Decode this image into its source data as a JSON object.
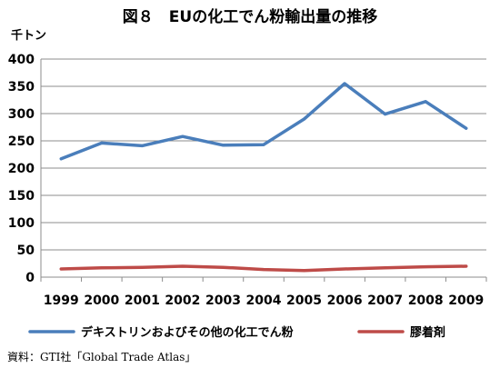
{
  "chart_data": {
    "type": "line",
    "title": "図８　EUの化工でん粉輸出量の推移",
    "y_unit": "千トン",
    "categories": [
      "1999",
      "2000",
      "2001",
      "2002",
      "2003",
      "2004",
      "2005",
      "2006",
      "2007",
      "2008",
      "2009"
    ],
    "ylim": [
      0,
      400
    ],
    "yticks": [
      0,
      50,
      100,
      150,
      200,
      250,
      300,
      350,
      400
    ],
    "grid": true,
    "legend_position": "bottom",
    "series": [
      {
        "name": "デキストリンおよびその他の化工でん粉",
        "color": "#4a7ebb",
        "values": [
          217,
          246,
          241,
          258,
          242,
          243,
          290,
          355,
          299,
          322,
          273
        ]
      },
      {
        "name": "膠着剤",
        "color": "#be4b48",
        "values": [
          15,
          17,
          18,
          20,
          18,
          14,
          12,
          15,
          17,
          19,
          20
        ]
      }
    ]
  },
  "source": "資料：GTI社「Global Trade Atlas」"
}
